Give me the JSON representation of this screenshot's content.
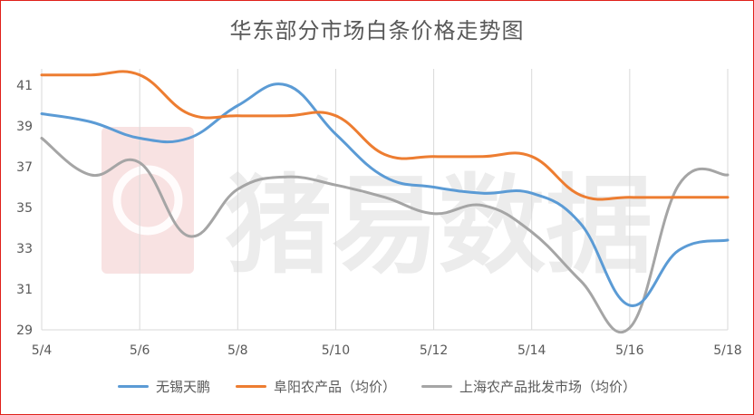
{
  "chart_data": {
    "type": "line",
    "title": "华东部分市场白条价格走势图",
    "watermark": "猪易数据",
    "x": [
      "5/4",
      "5/5",
      "5/6",
      "5/7",
      "5/8",
      "5/9",
      "5/10",
      "5/11",
      "5/12",
      "5/13",
      "5/14",
      "5/15",
      "5/16",
      "5/17",
      "5/18"
    ],
    "x_tick_labels": [
      "5/4",
      "5/6",
      "5/8",
      "5/10",
      "5/12",
      "5/14",
      "5/16",
      "5/18"
    ],
    "y_ticks": [
      29,
      31,
      33,
      35,
      37,
      39,
      41
    ],
    "ylim": [
      29,
      41.8
    ],
    "grid": "vertical",
    "legend_position": "bottom",
    "series": [
      {
        "name": "无锡天鹏",
        "color": "#5b9bd5",
        "values": [
          39.6,
          39.2,
          38.4,
          38.4,
          40.0,
          41.0,
          38.6,
          36.5,
          36.0,
          35.7,
          35.7,
          34.2,
          30.2,
          32.9,
          33.4
        ]
      },
      {
        "name": "阜阳农产品（均价）",
        "color": "#ed7d31",
        "values": [
          41.5,
          41.5,
          41.5,
          39.6,
          39.5,
          39.5,
          39.5,
          37.6,
          37.5,
          37.5,
          37.5,
          35.6,
          35.5,
          35.5,
          35.5
        ]
      },
      {
        "name": "上海农产品批发市场（均价）",
        "color": "#a5a5a5",
        "values": [
          38.4,
          36.6,
          37.2,
          33.6,
          35.9,
          36.5,
          36.1,
          35.5,
          34.7,
          35.1,
          33.8,
          31.4,
          29.1,
          36.1,
          36.6
        ]
      }
    ]
  }
}
